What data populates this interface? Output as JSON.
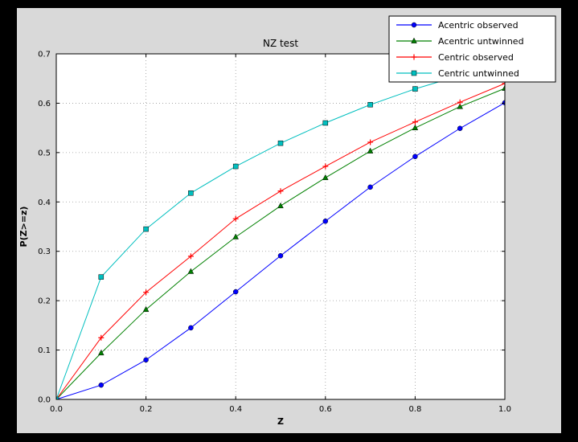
{
  "window": {
    "background": "#000000",
    "figure_background": "#d9d9d9",
    "plot_background": "#ffffff",
    "frame_color": "#000000",
    "grid_color": "#999999"
  },
  "chart_data": {
    "type": "line",
    "title": "NZ test",
    "xlabel": "Z",
    "ylabel": "P(Z>=z)",
    "xlim": [
      0.0,
      1.0
    ],
    "ylim": [
      0.0,
      0.7
    ],
    "xticks": [
      0.0,
      0.2,
      0.4,
      0.6,
      0.8,
      1.0
    ],
    "xtick_labels": [
      "0.0",
      "0.2",
      "0.4",
      "0.6",
      "0.8",
      "1.0"
    ],
    "yticks": [
      0.0,
      0.1,
      0.2,
      0.3,
      0.4,
      0.5,
      0.6,
      0.7
    ],
    "ytick_labels": [
      "0.0",
      "0.1",
      "0.2",
      "0.3",
      "0.4",
      "0.5",
      "0.6",
      "0.7"
    ],
    "grid": true,
    "grid_style": "dotted",
    "legend_position": "upper-right",
    "x": [
      0.0,
      0.1,
      0.2,
      0.3,
      0.4,
      0.5,
      0.6,
      0.7,
      0.8,
      0.9,
      1.0
    ],
    "series": [
      {
        "name": "Acentric observed",
        "color": "#0000ff",
        "marker": "circle",
        "values": [
          0.0,
          0.029,
          0.08,
          0.145,
          0.218,
          0.291,
          0.361,
          0.43,
          0.492,
          0.549,
          0.601
        ]
      },
      {
        "name": "Acentric untwinned",
        "color": "#008000",
        "marker": "triangle",
        "values": [
          0.0,
          0.094,
          0.182,
          0.259,
          0.329,
          0.392,
          0.449,
          0.503,
          0.55,
          0.593,
          0.63
        ]
      },
      {
        "name": "Centric observed",
        "color": "#ff0000",
        "marker": "plus",
        "values": [
          0.0,
          0.125,
          0.217,
          0.29,
          0.366,
          0.422,
          0.472,
          0.521,
          0.562,
          0.602,
          0.64
        ]
      },
      {
        "name": "Centric untwinned",
        "color": "#00bfbf",
        "marker": "square",
        "values": [
          0.0,
          0.248,
          0.345,
          0.418,
          0.472,
          0.519,
          0.56,
          0.597,
          0.629,
          0.656,
          0.683
        ]
      }
    ]
  }
}
